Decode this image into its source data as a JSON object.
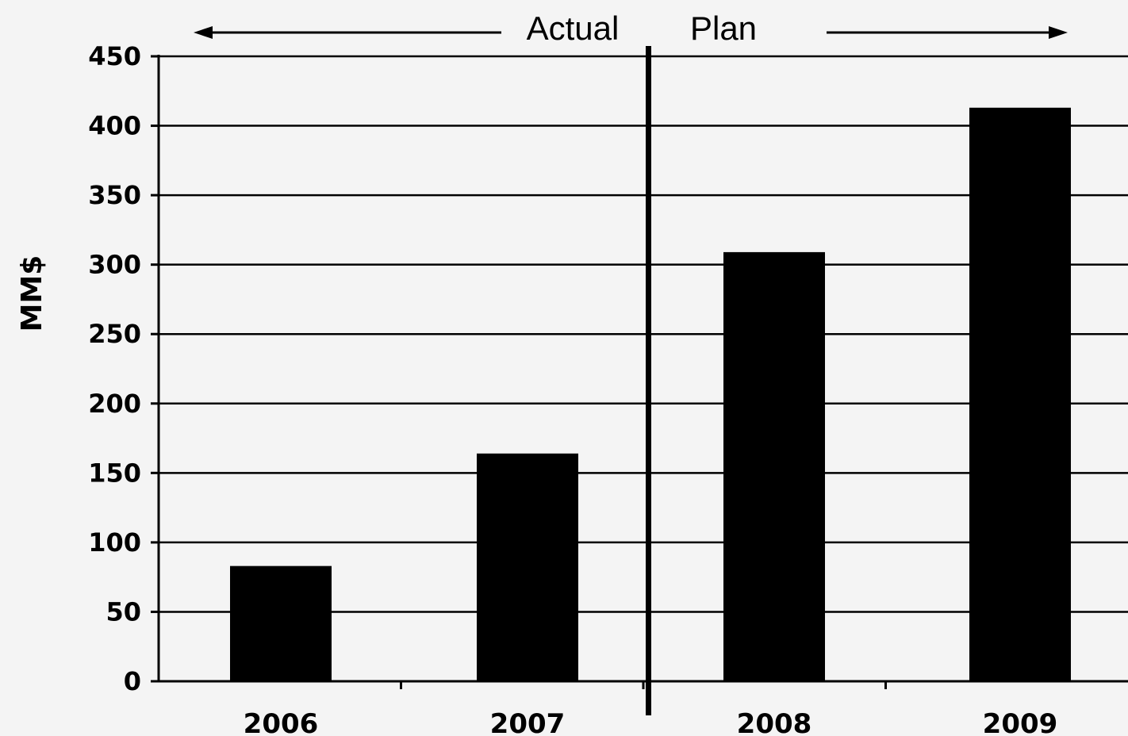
{
  "chart_data": {
    "type": "bar",
    "categories": [
      "2006",
      "2007",
      "2008",
      "2009"
    ],
    "values": [
      83,
      164,
      309,
      413
    ],
    "xlabel": "",
    "ylabel": "MM$",
    "ylim": [
      0,
      450
    ],
    "yticks": [
      0,
      50,
      100,
      150,
      200,
      250,
      300,
      350,
      400,
      450
    ],
    "grid": "horizontal",
    "legend": "none",
    "annotations": {
      "left_label": "Actual",
      "right_label": "Plan",
      "divider_after_category": "2007"
    },
    "colors": {
      "bar": "#000000",
      "grid": "#000000",
      "background": "#f4f4f4"
    }
  }
}
